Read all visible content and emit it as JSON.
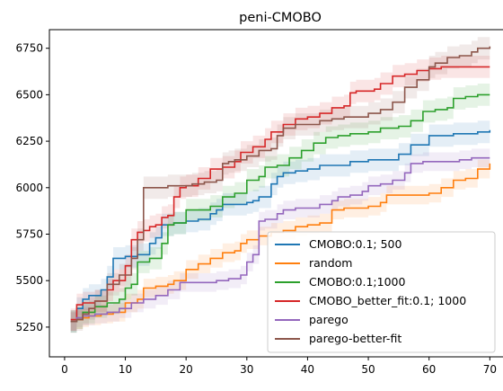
{
  "chart_data": {
    "type": "line",
    "title": "peni-CMOBO",
    "xlabel": "",
    "ylabel": "",
    "xlim": [
      -2.5,
      73.5
    ],
    "ylim": [
      5090,
      6850
    ],
    "xticks": [
      0,
      10,
      20,
      30,
      40,
      50,
      60,
      70
    ],
    "yticks": [
      5250,
      5500,
      5750,
      6000,
      6250,
      6500,
      6750
    ],
    "grid": false,
    "legend_position": "bottom-right",
    "series": [
      {
        "name": "CMOBO:0.1; 500",
        "color": "#1f77b4",
        "band": 60,
        "points": [
          [
            1,
            5280
          ],
          [
            2,
            5350
          ],
          [
            3,
            5400
          ],
          [
            4,
            5420
          ],
          [
            6,
            5450
          ],
          [
            7,
            5520
          ],
          [
            8,
            5620
          ],
          [
            10,
            5630
          ],
          [
            12,
            5640
          ],
          [
            14,
            5700
          ],
          [
            15,
            5730
          ],
          [
            16,
            5800
          ],
          [
            18,
            5810
          ],
          [
            20,
            5820
          ],
          [
            22,
            5830
          ],
          [
            24,
            5860
          ],
          [
            25,
            5880
          ],
          [
            26,
            5910
          ],
          [
            28,
            5910
          ],
          [
            30,
            5920
          ],
          [
            31,
            5930
          ],
          [
            32,
            5950
          ],
          [
            34,
            6020
          ],
          [
            35,
            6060
          ],
          [
            36,
            6080
          ],
          [
            38,
            6090
          ],
          [
            40,
            6100
          ],
          [
            42,
            6120
          ],
          [
            45,
            6120
          ],
          [
            47,
            6140
          ],
          [
            50,
            6150
          ],
          [
            52,
            6150
          ],
          [
            55,
            6180
          ],
          [
            57,
            6230
          ],
          [
            60,
            6280
          ],
          [
            62,
            6280
          ],
          [
            64,
            6290
          ],
          [
            66,
            6290
          ],
          [
            68,
            6300
          ],
          [
            70,
            6310
          ]
        ]
      },
      {
        "name": "random",
        "color": "#ff7f0e",
        "band": 50,
        "points": [
          [
            1,
            5280
          ],
          [
            2,
            5290
          ],
          [
            3,
            5300
          ],
          [
            4,
            5310
          ],
          [
            6,
            5320
          ],
          [
            8,
            5330
          ],
          [
            10,
            5380
          ],
          [
            12,
            5400
          ],
          [
            13,
            5460
          ],
          [
            15,
            5470
          ],
          [
            17,
            5480
          ],
          [
            18,
            5500
          ],
          [
            20,
            5560
          ],
          [
            22,
            5590
          ],
          [
            24,
            5620
          ],
          [
            26,
            5650
          ],
          [
            28,
            5660
          ],
          [
            29,
            5700
          ],
          [
            30,
            5720
          ],
          [
            32,
            5740
          ],
          [
            34,
            5760
          ],
          [
            36,
            5770
          ],
          [
            38,
            5790
          ],
          [
            40,
            5800
          ],
          [
            42,
            5810
          ],
          [
            44,
            5880
          ],
          [
            46,
            5890
          ],
          [
            48,
            5890
          ],
          [
            50,
            5900
          ],
          [
            52,
            5920
          ],
          [
            53,
            5960
          ],
          [
            55,
            5960
          ],
          [
            57,
            5960
          ],
          [
            59,
            5960
          ],
          [
            60,
            5970
          ],
          [
            62,
            6000
          ],
          [
            64,
            6040
          ],
          [
            66,
            6050
          ],
          [
            68,
            6100
          ],
          [
            70,
            6130
          ]
        ]
      },
      {
        "name": "CMOBO:0.1;1000",
        "color": "#2ca02c",
        "band": 60,
        "points": [
          [
            1,
            5280
          ],
          [
            2,
            5300
          ],
          [
            3,
            5330
          ],
          [
            5,
            5360
          ],
          [
            7,
            5380
          ],
          [
            9,
            5400
          ],
          [
            10,
            5460
          ],
          [
            11,
            5480
          ],
          [
            12,
            5600
          ],
          [
            14,
            5620
          ],
          [
            16,
            5700
          ],
          [
            17,
            5800
          ],
          [
            18,
            5810
          ],
          [
            20,
            5880
          ],
          [
            22,
            5880
          ],
          [
            24,
            5900
          ],
          [
            26,
            5950
          ],
          [
            28,
            5970
          ],
          [
            30,
            6040
          ],
          [
            32,
            6060
          ],
          [
            33,
            6110
          ],
          [
            35,
            6120
          ],
          [
            37,
            6160
          ],
          [
            39,
            6200
          ],
          [
            41,
            6240
          ],
          [
            43,
            6270
          ],
          [
            45,
            6280
          ],
          [
            47,
            6290
          ],
          [
            50,
            6300
          ],
          [
            52,
            6320
          ],
          [
            55,
            6330
          ],
          [
            57,
            6360
          ],
          [
            59,
            6410
          ],
          [
            61,
            6420
          ],
          [
            63,
            6430
          ],
          [
            64,
            6480
          ],
          [
            66,
            6490
          ],
          [
            68,
            6500
          ],
          [
            70,
            6500
          ]
        ]
      },
      {
        "name": "CMOBO_better_fit:0.1; 1000",
        "color": "#d62728",
        "band": 60,
        "points": [
          [
            1,
            5290
          ],
          [
            2,
            5370
          ],
          [
            3,
            5380
          ],
          [
            5,
            5390
          ],
          [
            7,
            5450
          ],
          [
            8,
            5500
          ],
          [
            10,
            5580
          ],
          [
            11,
            5720
          ],
          [
            12,
            5760
          ],
          [
            13,
            5770
          ],
          [
            14,
            5790
          ],
          [
            15,
            5800
          ],
          [
            16,
            5840
          ],
          [
            17,
            5850
          ],
          [
            18,
            5950
          ],
          [
            19,
            6000
          ],
          [
            20,
            6010
          ],
          [
            22,
            6050
          ],
          [
            24,
            6100
          ],
          [
            26,
            6110
          ],
          [
            28,
            6140
          ],
          [
            29,
            6190
          ],
          [
            31,
            6220
          ],
          [
            33,
            6260
          ],
          [
            34,
            6300
          ],
          [
            36,
            6340
          ],
          [
            38,
            6370
          ],
          [
            40,
            6380
          ],
          [
            42,
            6400
          ],
          [
            44,
            6430
          ],
          [
            46,
            6440
          ],
          [
            47,
            6510
          ],
          [
            48,
            6520
          ],
          [
            51,
            6530
          ],
          [
            52,
            6560
          ],
          [
            54,
            6600
          ],
          [
            56,
            6610
          ],
          [
            58,
            6630
          ],
          [
            60,
            6640
          ],
          [
            62,
            6650
          ],
          [
            65,
            6650
          ],
          [
            68,
            6650
          ],
          [
            70,
            6650
          ]
        ]
      },
      {
        "name": "parego",
        "color": "#9467bd",
        "band": 50,
        "points": [
          [
            1,
            5280
          ],
          [
            2,
            5300
          ],
          [
            3,
            5310
          ],
          [
            5,
            5320
          ],
          [
            7,
            5330
          ],
          [
            9,
            5350
          ],
          [
            11,
            5380
          ],
          [
            13,
            5400
          ],
          [
            15,
            5420
          ],
          [
            17,
            5450
          ],
          [
            19,
            5490
          ],
          [
            21,
            5490
          ],
          [
            23,
            5490
          ],
          [
            25,
            5500
          ],
          [
            27,
            5510
          ],
          [
            29,
            5530
          ],
          [
            30,
            5600
          ],
          [
            31,
            5640
          ],
          [
            32,
            5820
          ],
          [
            33,
            5830
          ],
          [
            35,
            5860
          ],
          [
            36,
            5880
          ],
          [
            38,
            5890
          ],
          [
            40,
            5890
          ],
          [
            42,
            5910
          ],
          [
            44,
            5930
          ],
          [
            45,
            5950
          ],
          [
            47,
            5960
          ],
          [
            49,
            5980
          ],
          [
            50,
            6010
          ],
          [
            52,
            6020
          ],
          [
            54,
            6040
          ],
          [
            56,
            6080
          ],
          [
            57,
            6130
          ],
          [
            59,
            6140
          ],
          [
            62,
            6140
          ],
          [
            65,
            6150
          ],
          [
            67,
            6160
          ],
          [
            70,
            6160
          ]
        ]
      },
      {
        "name": "parego-better-fit",
        "color": "#8c564b",
        "band": 60,
        "points": [
          [
            1,
            5280
          ],
          [
            2,
            5290
          ],
          [
            3,
            5320
          ],
          [
            4,
            5350
          ],
          [
            5,
            5390
          ],
          [
            7,
            5480
          ],
          [
            9,
            5530
          ],
          [
            11,
            5620
          ],
          [
            12,
            5720
          ],
          [
            13,
            6000
          ],
          [
            15,
            6000
          ],
          [
            17,
            6010
          ],
          [
            19,
            6010
          ],
          [
            21,
            6020
          ],
          [
            23,
            6030
          ],
          [
            25,
            6040
          ],
          [
            26,
            6130
          ],
          [
            27,
            6140
          ],
          [
            28,
            6150
          ],
          [
            30,
            6170
          ],
          [
            32,
            6200
          ],
          [
            34,
            6210
          ],
          [
            35,
            6280
          ],
          [
            36,
            6320
          ],
          [
            38,
            6340
          ],
          [
            40,
            6340
          ],
          [
            42,
            6360
          ],
          [
            44,
            6370
          ],
          [
            46,
            6380
          ],
          [
            48,
            6380
          ],
          [
            50,
            6400
          ],
          [
            52,
            6420
          ],
          [
            54,
            6460
          ],
          [
            56,
            6540
          ],
          [
            58,
            6580
          ],
          [
            60,
            6650
          ],
          [
            61,
            6670
          ],
          [
            63,
            6700
          ],
          [
            65,
            6710
          ],
          [
            67,
            6730
          ],
          [
            68,
            6750
          ],
          [
            70,
            6760
          ]
        ]
      }
    ]
  }
}
